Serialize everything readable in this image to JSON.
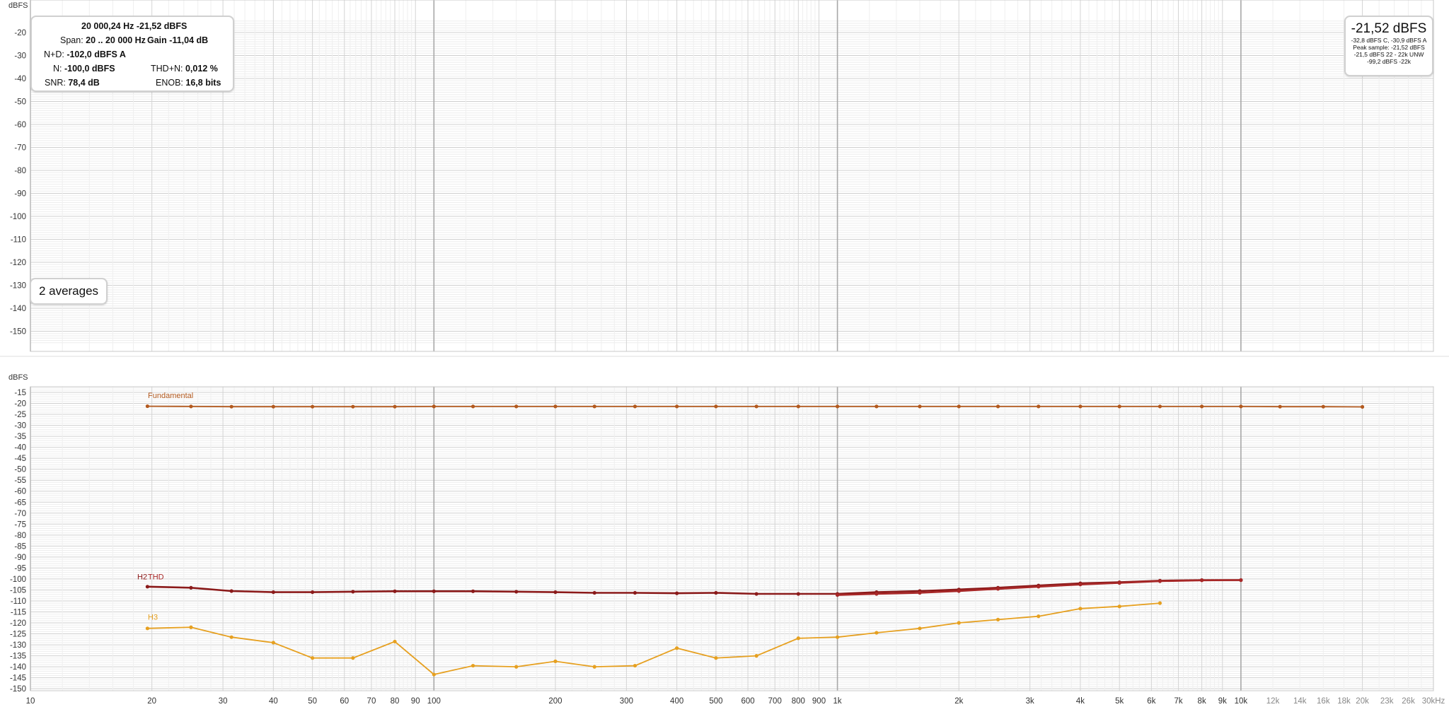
{
  "info": {
    "freq_level": "20 000,24 Hz  -21,52 dBFS",
    "span_label": "Span:",
    "span": "20 .. 20 000 Hz",
    "gain_label": "Gain",
    "gain": "-11,04 dB",
    "nd_label": "N+D:",
    "nd": "-102,0 dBFS A",
    "n_label": "N:",
    "n": "-100,0 dBFS",
    "thdn_label": "THD+N:",
    "thdn": "0,012 %",
    "snr_label": "SNR:",
    "snr": "78,4 dB",
    "enob_label": "ENOB:",
    "enob": "16,8 bits"
  },
  "level": {
    "main": "-21,52 dBFS",
    "line1": "-32,8 dBFS C, -30,9 dBFS A",
    "line2": "Peak sample: -21,52 dBFS",
    "line3": "-21,5 dBFS 22 - 22k UNW",
    "line4": "-99,2 dBFS -22k"
  },
  "averages": "2 averages",
  "chart_data": [
    {
      "type": "line",
      "ylabel": "dBFS",
      "x_scale": "log",
      "xlim": [
        10,
        30000
      ],
      "ylim": [
        -155,
        -15
      ],
      "y_ticks": [
        -20,
        -30,
        -40,
        -50,
        -60,
        -70,
        -80,
        -90,
        -100,
        -110,
        -120,
        -130,
        -140,
        -150
      ],
      "x_ticks": [
        {
          "v": 20,
          "label": "20"
        },
        {
          "v": 30,
          "label": "30"
        },
        {
          "v": 40,
          "label": "40"
        },
        {
          "v": 50,
          "label": "50"
        },
        {
          "v": 60,
          "label": "60"
        },
        {
          "v": 70,
          "label": "70"
        },
        {
          "v": 80,
          "label": "80"
        },
        {
          "v": 90,
          "label": "90"
        },
        {
          "v": 100,
          "label": "100"
        },
        {
          "v": 200,
          "label": "200"
        },
        {
          "v": 300,
          "label": "300"
        },
        {
          "v": 400,
          "label": "400"
        },
        {
          "v": 500,
          "label": "500"
        },
        {
          "v": 600,
          "label": "600"
        },
        {
          "v": 700,
          "label": "700"
        },
        {
          "v": 800,
          "label": "800"
        },
        {
          "v": 900,
          "label": "900"
        },
        {
          "v": 1000,
          "label": "1k"
        },
        {
          "v": 2000,
          "label": "2k"
        },
        {
          "v": 3000,
          "label": "3k"
        },
        {
          "v": 4000,
          "label": "4k"
        },
        {
          "v": 5000,
          "label": "5k"
        },
        {
          "v": 6000,
          "label": "6k"
        },
        {
          "v": 7000,
          "label": "7k"
        },
        {
          "v": 8000,
          "label": "8k"
        },
        {
          "v": 9000,
          "label": "9k"
        },
        {
          "v": 10000,
          "label": "10k"
        },
        {
          "v": 12000,
          "label": "12k"
        },
        {
          "v": 14000,
          "label": "14k"
        },
        {
          "v": 16000,
          "label": "16k"
        },
        {
          "v": 18000,
          "label": "18k"
        },
        {
          "v": 20000,
          "label": "20k"
        },
        {
          "v": 23000,
          "label": "23k"
        },
        {
          "v": 26000,
          "label": "26k"
        }
      ],
      "series": []
    },
    {
      "type": "line",
      "ylabel": "dBFS",
      "x_scale": "log",
      "xlim": [
        10,
        30000
      ],
      "ylim": [
        -155,
        -12
      ],
      "y_ticks": [
        -15,
        -20,
        -25,
        -30,
        -35,
        -40,
        -45,
        -50,
        -55,
        -60,
        -65,
        -70,
        -75,
        -80,
        -85,
        -90,
        -95,
        -100,
        -105,
        -110,
        -115,
        -120,
        -125,
        -130,
        -135,
        -140,
        -145,
        -150
      ],
      "x_ticks": [
        {
          "v": 10,
          "label": "10"
        },
        {
          "v": 20,
          "label": "20"
        },
        {
          "v": 30,
          "label": "30"
        },
        {
          "v": 40,
          "label": "40"
        },
        {
          "v": 50,
          "label": "50"
        },
        {
          "v": 60,
          "label": "60"
        },
        {
          "v": 70,
          "label": "70"
        },
        {
          "v": 80,
          "label": "80"
        },
        {
          "v": 90,
          "label": "90"
        },
        {
          "v": 100,
          "label": "100"
        },
        {
          "v": 200,
          "label": "200"
        },
        {
          "v": 300,
          "label": "300"
        },
        {
          "v": 400,
          "label": "400"
        },
        {
          "v": 500,
          "label": "500"
        },
        {
          "v": 600,
          "label": "600"
        },
        {
          "v": 700,
          "label": "700"
        },
        {
          "v": 800,
          "label": "800"
        },
        {
          "v": 900,
          "label": "900"
        },
        {
          "v": 1000,
          "label": "1k"
        },
        {
          "v": 2000,
          "label": "2k"
        },
        {
          "v": 3000,
          "label": "3k"
        },
        {
          "v": 4000,
          "label": "4k"
        },
        {
          "v": 5000,
          "label": "5k"
        },
        {
          "v": 6000,
          "label": "6k"
        },
        {
          "v": 7000,
          "label": "7k"
        },
        {
          "v": 8000,
          "label": "8k"
        },
        {
          "v": 9000,
          "label": "9k"
        },
        {
          "v": 10000,
          "label": "10k"
        },
        {
          "v": 12000,
          "label": "12k"
        },
        {
          "v": 14000,
          "label": "14k"
        },
        {
          "v": 16000,
          "label": "16k"
        },
        {
          "v": 18000,
          "label": "18k"
        },
        {
          "v": 20000,
          "label": "20k"
        },
        {
          "v": 23000,
          "label": "23k"
        },
        {
          "v": 26000,
          "label": "26k"
        },
        {
          "v": 30000,
          "label": "30kHz"
        }
      ],
      "series": [
        {
          "name": "Fundamental",
          "color": "#b35a1f",
          "x": [
            19.5,
            25,
            31.5,
            40,
            50,
            63,
            80,
            100,
            125,
            160,
            200,
            250,
            315,
            400,
            500,
            630,
            800,
            1000,
            1250,
            1600,
            2000,
            2500,
            3150,
            4000,
            5000,
            6300,
            8000,
            10000,
            12500,
            16000,
            20000
          ],
          "y": [
            -21.3,
            -21.4,
            -21.5,
            -21.5,
            -21.5,
            -21.5,
            -21.5,
            -21.4,
            -21.4,
            -21.4,
            -21.4,
            -21.4,
            -21.4,
            -21.4,
            -21.4,
            -21.4,
            -21.4,
            -21.4,
            -21.4,
            -21.4,
            -21.4,
            -21.4,
            -21.4,
            -21.4,
            -21.4,
            -21.4,
            -21.4,
            -21.4,
            -21.5,
            -21.5,
            -21.6
          ]
        },
        {
          "name": "H2",
          "color": "#8b1a1a",
          "x": [
            19.5,
            25,
            31.5,
            40,
            50,
            63,
            80,
            100,
            125,
            160,
            200,
            250,
            315,
            400,
            500,
            630,
            800,
            1000,
            1250,
            1600,
            2000,
            2500,
            3150,
            4000,
            5000,
            6300,
            8000,
            10000
          ],
          "y": [
            -103.5,
            -104,
            -105.5,
            -106,
            -106,
            -105.8,
            -105.6,
            -105.6,
            -105.6,
            -105.8,
            -106,
            -106.3,
            -106.3,
            -106.5,
            -106.3,
            -106.8,
            -106.8,
            -106.8,
            -106,
            -105.5,
            -104.8,
            -104,
            -103,
            -102,
            -101.5,
            -100.8,
            -100.5,
            -100.5
          ]
        },
        {
          "name": "THD",
          "color": "#a82828",
          "x": [
            1000,
            1250,
            1600,
            2000,
            2500,
            3150,
            4000,
            5000,
            6300,
            8000,
            10000
          ],
          "y": [
            -107.3,
            -106.8,
            -106.3,
            -105.5,
            -104.5,
            -103.5,
            -102.5,
            -101.8,
            -101,
            -100.6,
            -100.5
          ]
        },
        {
          "name": "H3",
          "color": "#e6a020",
          "x": [
            19.5,
            25,
            31.5,
            40,
            50,
            63,
            80,
            100,
            125,
            160,
            200,
            250,
            315,
            400,
            500,
            630,
            800,
            1000,
            1250,
            1600,
            2000,
            2500,
            3150,
            4000,
            5000,
            6300
          ],
          "y": [
            -122.5,
            -122,
            -126.5,
            -129,
            -136,
            -136,
            -128.5,
            -143.5,
            -139.5,
            -140,
            -137.5,
            -140,
            -139.5,
            -131.5,
            -136,
            -135,
            -127,
            -126.5,
            -124.5,
            -122.5,
            -120,
            -118.5,
            -117,
            -113.5,
            -112.5,
            -111
          ]
        }
      ]
    }
  ]
}
